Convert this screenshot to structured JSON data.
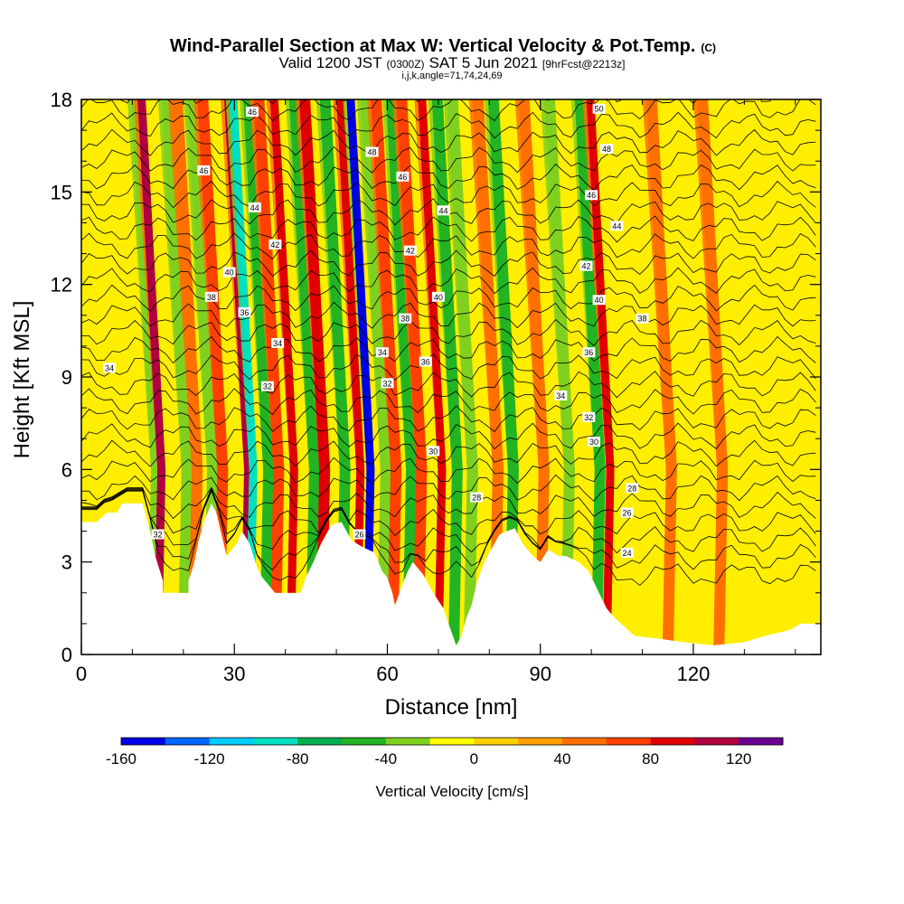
{
  "chart_data": {
    "type": "heatmap",
    "title": "Wind-Parallel Section at Max W: Vertical Velocity & Pot.Temp.",
    "title_mark": "(C)",
    "subtitle_valid": "Valid 1200 JST",
    "subtitle_utc": "(0300Z)",
    "subtitle_date": "SAT 5 Jun 2021",
    "subtitle_fcst": "[9hrFcst@2213z]",
    "subtitle_index": "i,j,k,angle=71,74,24,69",
    "xlabel": "Distance [nm]",
    "ylabel": "Height [Kft MSL]",
    "xlim": [
      0,
      145
    ],
    "ylim": [
      0,
      18
    ],
    "x_ticks": [
      0,
      30,
      60,
      90,
      120
    ],
    "y_ticks": [
      0,
      3,
      6,
      9,
      12,
      15,
      18
    ],
    "colorbar": {
      "label": "Vertical Velocity [cm/s]",
      "range": [
        -160,
        140
      ],
      "ticks": [
        -160,
        -120,
        -80,
        -40,
        0,
        40,
        80,
        120
      ],
      "colors": [
        "#0000e6",
        "#0066ff",
        "#00ccff",
        "#00e0c0",
        "#00b050",
        "#22b422",
        "#80d020",
        "#ffff00",
        "#ffd000",
        "#ffa000",
        "#ff7000",
        "#ff4000",
        "#e00000",
        "#b00040",
        "#6a0090"
      ]
    },
    "velocity_features": [
      {
        "x": 14,
        "w": -40
      },
      {
        "x": 15,
        "w": 110
      },
      {
        "x": 20,
        "w": -40
      },
      {
        "x": 22,
        "w": 50
      },
      {
        "x": 25,
        "w": -40
      },
      {
        "x": 27,
        "w": 70
      },
      {
        "x": 32,
        "w": 110
      },
      {
        "x": 33,
        "w": -100
      },
      {
        "x": 36,
        "w": -60
      },
      {
        "x": 38,
        "w": 70
      },
      {
        "x": 41,
        "w": 90
      },
      {
        "x": 45,
        "w": -60
      },
      {
        "x": 47,
        "w": 80
      },
      {
        "x": 51,
        "w": -60
      },
      {
        "x": 54,
        "w": 90
      },
      {
        "x": 56,
        "w": -160
      },
      {
        "x": 59,
        "w": -40
      },
      {
        "x": 61,
        "w": 60
      },
      {
        "x": 64,
        "w": -60
      },
      {
        "x": 66,
        "w": 60
      },
      {
        "x": 70,
        "w": 90
      },
      {
        "x": 73,
        "w": -50
      },
      {
        "x": 76,
        "w": -30
      },
      {
        "x": 81,
        "w": 40
      },
      {
        "x": 84,
        "w": -50
      },
      {
        "x": 90,
        "w": 40
      },
      {
        "x": 95,
        "w": -30
      },
      {
        "x": 101,
        "w": -50
      },
      {
        "x": 103,
        "w": 90
      },
      {
        "x": 115,
        "w": 40
      },
      {
        "x": 125,
        "w": 40
      }
    ],
    "pot_temp_contour_labels": [
      {
        "text": "34",
        "x": 5.5,
        "y": 9.3
      },
      {
        "text": "32",
        "x": 15,
        "y": 3.9
      },
      {
        "text": "46",
        "x": 33.5,
        "y": 17.6
      },
      {
        "text": "46",
        "x": 24,
        "y": 15.7
      },
      {
        "text": "44",
        "x": 34,
        "y": 14.5
      },
      {
        "text": "42",
        "x": 38,
        "y": 13.3
      },
      {
        "text": "40",
        "x": 29,
        "y": 12.4
      },
      {
        "text": "38",
        "x": 25.5,
        "y": 11.6
      },
      {
        "text": "36",
        "x": 32,
        "y": 11.1
      },
      {
        "text": "34",
        "x": 38.5,
        "y": 10.1
      },
      {
        "text": "32",
        "x": 36.5,
        "y": 8.7
      },
      {
        "text": "26",
        "x": 54.5,
        "y": 3.9
      },
      {
        "text": "48",
        "x": 57,
        "y": 16.3
      },
      {
        "text": "46",
        "x": 63,
        "y": 15.5
      },
      {
        "text": "44",
        "x": 71,
        "y": 14.4
      },
      {
        "text": "42",
        "x": 64.5,
        "y": 13.1
      },
      {
        "text": "40",
        "x": 70,
        "y": 11.6
      },
      {
        "text": "38",
        "x": 63.5,
        "y": 10.9
      },
      {
        "text": "34",
        "x": 59,
        "y": 9.8
      },
      {
        "text": "36",
        "x": 67.5,
        "y": 9.5
      },
      {
        "text": "32",
        "x": 60,
        "y": 8.8
      },
      {
        "text": "30",
        "x": 69,
        "y": 6.6
      },
      {
        "text": "28",
        "x": 77.5,
        "y": 5.1
      },
      {
        "text": "50",
        "x": 101.5,
        "y": 17.7
      },
      {
        "text": "48",
        "x": 103,
        "y": 16.4
      },
      {
        "text": "46",
        "x": 100,
        "y": 14.9
      },
      {
        "text": "44",
        "x": 105,
        "y": 13.9
      },
      {
        "text": "42",
        "x": 99,
        "y": 12.6
      },
      {
        "text": "40",
        "x": 101.5,
        "y": 11.5
      },
      {
        "text": "38",
        "x": 110,
        "y": 10.9
      },
      {
        "text": "36",
        "x": 99.5,
        "y": 9.8
      },
      {
        "text": "34",
        "x": 94,
        "y": 8.4
      },
      {
        "text": "32",
        "x": 99.5,
        "y": 7.7
      },
      {
        "text": "30",
        "x": 100.5,
        "y": 6.9
      },
      {
        "text": "28",
        "x": 108,
        "y": 5.4
      },
      {
        "text": "26",
        "x": 107,
        "y": 4.6
      },
      {
        "text": "24",
        "x": 107,
        "y": 3.3
      }
    ],
    "terrain_profile": [
      [
        0,
        4.3
      ],
      [
        3,
        4.3
      ],
      [
        5,
        4.6
      ],
      [
        7,
        4.6
      ],
      [
        8,
        4.9
      ],
      [
        12,
        4.9
      ],
      [
        13,
        4.3
      ],
      [
        13.5,
        4.0
      ],
      [
        14.5,
        3.2
      ],
      [
        16,
        2.4
      ],
      [
        16,
        2.0
      ],
      [
        21,
        2.0
      ],
      [
        21,
        2.4
      ],
      [
        22,
        2.9
      ],
      [
        23,
        3.7
      ],
      [
        24,
        4.3
      ],
      [
        25.5,
        4.9
      ],
      [
        26.5,
        4.6
      ],
      [
        27.5,
        3.9
      ],
      [
        28.5,
        3.2
      ],
      [
        30.5,
        3.6
      ],
      [
        31.5,
        4.0
      ],
      [
        33,
        3.6
      ],
      [
        34.5,
        2.8
      ],
      [
        35.5,
        2.5
      ],
      [
        37,
        2.2
      ],
      [
        38,
        2.0
      ],
      [
        43,
        2.0
      ],
      [
        44,
        2.5
      ],
      [
        45.5,
        3.0
      ],
      [
        47,
        3.6
      ],
      [
        49,
        4.2
      ],
      [
        51,
        4.3
      ],
      [
        53,
        3.7
      ],
      [
        55,
        3.5
      ],
      [
        57.5,
        3.3
      ],
      [
        59,
        2.7
      ],
      [
        60,
        2.5
      ],
      [
        61,
        2.0
      ],
      [
        61.5,
        1.6
      ],
      [
        63,
        2.3
      ],
      [
        64,
        2.7
      ],
      [
        65,
        3.0
      ],
      [
        67,
        2.6
      ],
      [
        69,
        2.0
      ],
      [
        71,
        1.5
      ],
      [
        72,
        1.0
      ],
      [
        73.5,
        0.3
      ],
      [
        74.5,
        0.6
      ],
      [
        75.5,
        1.2
      ],
      [
        76.5,
        1.6
      ],
      [
        77.5,
        2.3
      ],
      [
        79,
        3.0
      ],
      [
        82,
        3.9
      ],
      [
        85,
        4.1
      ],
      [
        86.5,
        3.6
      ],
      [
        88.5,
        3.2
      ],
      [
        90,
        3.0
      ],
      [
        91.5,
        3.4
      ],
      [
        93.5,
        3.2
      ],
      [
        95,
        3.2
      ],
      [
        97.5,
        3.0
      ],
      [
        99.5,
        2.7
      ],
      [
        101.5,
        2.0
      ],
      [
        103,
        1.5
      ],
      [
        104.5,
        1.2
      ],
      [
        106.5,
        0.9
      ],
      [
        108.5,
        0.6
      ],
      [
        114,
        0.5
      ],
      [
        118,
        0.4
      ],
      [
        124,
        0.3
      ],
      [
        130,
        0.4
      ],
      [
        134,
        0.6
      ],
      [
        139,
        0.8
      ],
      [
        141,
        1.0
      ],
      [
        145,
        1.0
      ]
    ]
  }
}
